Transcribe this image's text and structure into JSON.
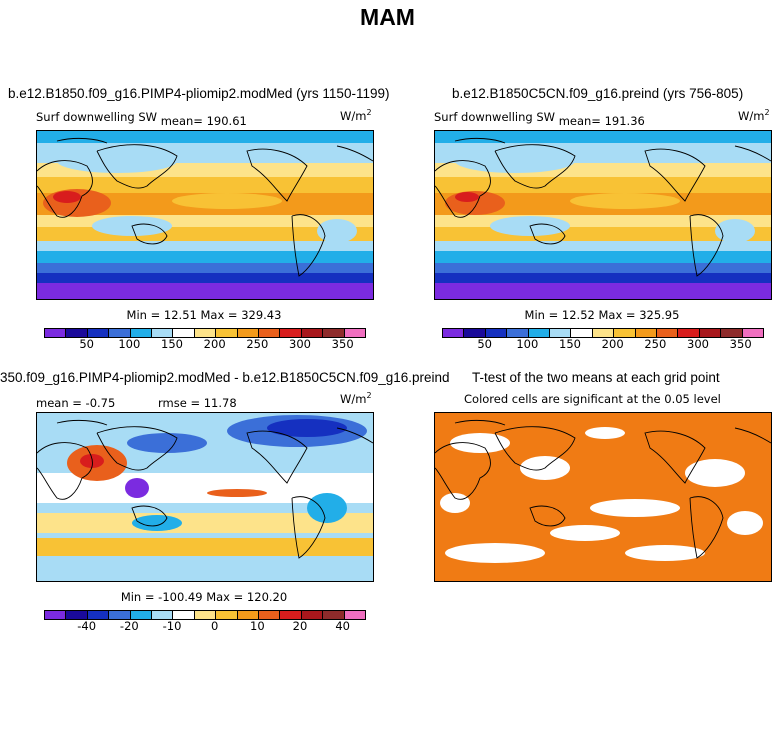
{
  "title": "MAM",
  "colors": {
    "levels": [
      "#7b2be0",
      "#1a0a9a",
      "#1530c0",
      "#3b6fd8",
      "#22aee8",
      "#a8dcf5",
      "#ffffff",
      "#fde38a",
      "#f8c235",
      "#f39a1b",
      "#e9601c",
      "#d81d1d",
      "#a8171c",
      "#8e2b2b",
      "#f06fc0"
    ],
    "signif": "#f07b14"
  },
  "chart_data": [
    {
      "type": "heatmap",
      "panel": "top-left",
      "title": "b.e12.B1850.f09_g16.PIMP4-pliomip2.modMed (yrs 1150-1199)",
      "subtitle": "Surf downwelling SW",
      "mean_label": "mean= 190.61",
      "units": "W/m",
      "units_exp": "2",
      "stats": "Min =  12.51 Max = 329.43",
      "min": 12.51,
      "max": 329.43,
      "mean": 190.61,
      "colorbar_ticks": [
        "50",
        "100",
        "150",
        "200",
        "250",
        "300",
        "350"
      ]
    },
    {
      "type": "heatmap",
      "panel": "top-right",
      "title": "b.e12.B1850C5CN.f09_g16.preind (yrs 756-805)",
      "subtitle": "Surf downwelling SW",
      "mean_label": "mean= 191.36",
      "units": "W/m",
      "units_exp": "2",
      "stats": "Min =  12.52 Max = 325.95",
      "min": 12.52,
      "max": 325.95,
      "mean": 191.36,
      "colorbar_ticks": [
        "50",
        "100",
        "150",
        "200",
        "250",
        "300",
        "350"
      ]
    },
    {
      "type": "heatmap",
      "panel": "bottom-left",
      "title": "350.f09_g16.PIMP4-pliomip2.modMed - b.e12.B1850C5CN.f09_g16.preind",
      "mean_label": "mean =  -0.75",
      "rmse_label": "rmse =  11.78",
      "units": "W/m",
      "units_exp": "2",
      "stats": "Min = -100.49 Max = 120.20",
      "min": -100.49,
      "max": 120.2,
      "mean": -0.75,
      "rmse": 11.78,
      "colorbar_ticks": [
        "-40",
        "-20",
        "-10",
        "0",
        "10",
        "20",
        "40"
      ]
    },
    {
      "type": "heatmap",
      "panel": "bottom-right",
      "title": "T-test of the two means at each grid point",
      "subtitle": "Colored cells are significant at the 0.05 level",
      "significance_level": 0.05
    }
  ]
}
